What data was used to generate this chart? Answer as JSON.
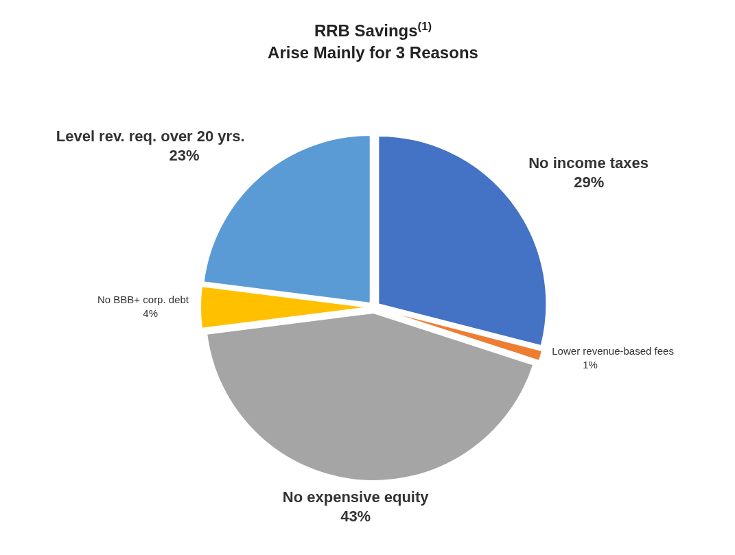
{
  "chart_data": {
    "type": "pie",
    "title": "RRB Savings$^{(1)}$\nArise Mainly for 3 Reasons",
    "categories": [
      "No income taxes",
      "Lower revenue-based fees",
      "No expensive equity",
      "No BBB+ corp. debt",
      "Level rev. req. over 20 yrs."
    ],
    "values": [
      29,
      1,
      43,
      4,
      23
    ],
    "colors": [
      "#4472c4",
      "#ed7d31",
      "#a5a5a5",
      "#ffc000",
      "#5b9bd5"
    ],
    "value_labels": [
      "29%",
      "1%",
      "43%",
      "4%",
      "23%"
    ]
  }
}
